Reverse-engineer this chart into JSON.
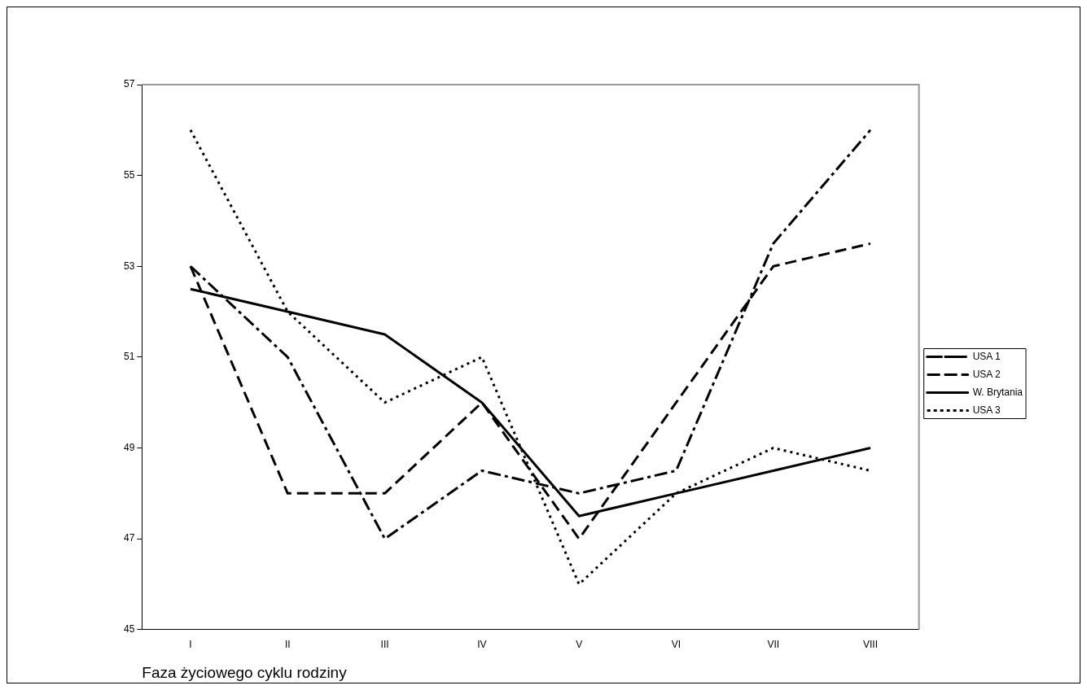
{
  "chart_data": {
    "type": "line",
    "xlabel": "Faza życiowego cyklu rodziny",
    "categories": [
      "I",
      "II",
      "III",
      "IV",
      "V",
      "VI",
      "VII",
      "VIII"
    ],
    "ylim": [
      45,
      57
    ],
    "yticks": [
      45,
      47,
      49,
      51,
      53,
      55,
      57
    ],
    "grid": false,
    "legend": "right",
    "marker": "none",
    "series": [
      {
        "name": "USA 1",
        "color": "#000000",
        "line_style": "dashed",
        "values": [
          53,
          51,
          47,
          48.5,
          48,
          48.5,
          53.5,
          56
        ]
      },
      {
        "name": "USA 2",
        "color": "#000000",
        "line_style": "dashed",
        "values": [
          53,
          48,
          48,
          50,
          47,
          50,
          53,
          53.5
        ]
      },
      {
        "name": "W. Brytania",
        "color": "#000000",
        "line_style": "solid",
        "values": [
          52.5,
          52,
          51.5,
          50,
          47.5,
          48,
          48.5,
          49
        ]
      },
      {
        "name": "USA 3",
        "color": "#000000",
        "line_style": "dotted",
        "values": [
          56,
          52,
          50,
          51,
          46,
          48,
          49,
          48.5
        ]
      }
    ]
  }
}
